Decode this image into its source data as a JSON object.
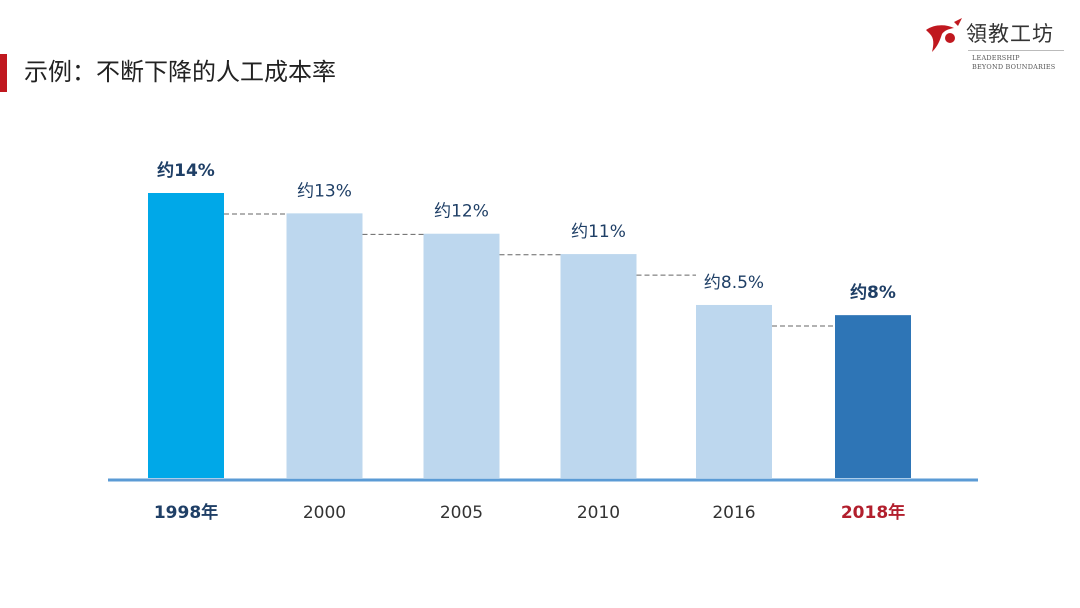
{
  "slide": {
    "title": "示例：不断下降的人工成本率"
  },
  "logo": {
    "name_cn": "領教工坊",
    "tagline_line1": "LEADERSHIP",
    "tagline_line2": "BEYOND BOUNDARIES",
    "mark_color": "#c0181f"
  },
  "colors": {
    "first_bar": "#00a8e8",
    "middle_bar": "#bdd7ee",
    "last_bar": "#2e75b6",
    "baseline": "#5b9bd5",
    "label_dark": "#1f3f66",
    "label_normal": "#333333",
    "highlight_year": "#b21f2d",
    "connector": "#666666"
  },
  "chart_data": {
    "type": "bar",
    "categories": [
      "1998年",
      "2000",
      "2005",
      "2010",
      "2016",
      "2018年"
    ],
    "values": [
      14,
      13,
      12,
      11,
      8.5,
      8
    ],
    "data_labels": [
      "约14%",
      "约13%",
      "约12%",
      "约11%",
      "约8.5%",
      "约8%"
    ],
    "title": "",
    "xlabel": "",
    "ylabel": "",
    "ylim": [
      0,
      14
    ],
    "grid": false,
    "legend": "none",
    "connector_lines": "dashed"
  }
}
